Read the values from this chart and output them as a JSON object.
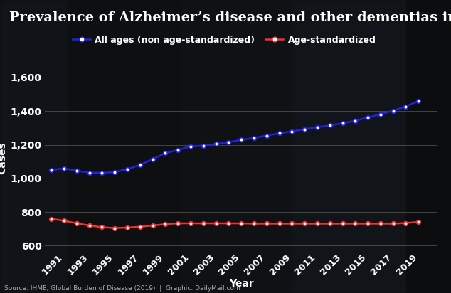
{
  "title": "Prevalence of Alzheimer’s disease and other dementias in US",
  "xlabel": "Year",
  "ylabel": "Cases",
  "source_text": "Source: IHME, Global Burden of Disease (2019)  |  Graphic: DailyMail.com",
  "years": [
    1990,
    1991,
    1992,
    1993,
    1994,
    1995,
    1996,
    1997,
    1998,
    1999,
    2000,
    2001,
    2002,
    2003,
    2004,
    2005,
    2006,
    2007,
    2008,
    2009,
    2010,
    2011,
    2012,
    2013,
    2014,
    2015,
    2016,
    2017,
    2018,
    2019
  ],
  "all_ages": [
    1050,
    1060,
    1045,
    1035,
    1033,
    1038,
    1055,
    1080,
    1115,
    1150,
    1170,
    1190,
    1195,
    1205,
    1215,
    1230,
    1240,
    1255,
    1268,
    1280,
    1293,
    1305,
    1315,
    1328,
    1343,
    1362,
    1382,
    1403,
    1428,
    1460
  ],
  "age_std": [
    760,
    748,
    733,
    720,
    710,
    705,
    708,
    713,
    720,
    728,
    733,
    733,
    733,
    733,
    733,
    733,
    731,
    731,
    731,
    731,
    731,
    731,
    731,
    731,
    731,
    731,
    731,
    731,
    735,
    741
  ],
  "all_ages_color": "#2222dd",
  "age_std_color": "#ee3333",
  "bg_dark": "#1a1a1a",
  "bg_alpha": 0.82,
  "text_color": "#ffffff",
  "grid_color": "#666666",
  "ylim": [
    580,
    1660
  ],
  "yticks": [
    600,
    800,
    1000,
    1200,
    1400,
    1600
  ],
  "xtick_years": [
    1991,
    1993,
    1995,
    1997,
    1999,
    2001,
    2003,
    2005,
    2007,
    2009,
    2011,
    2013,
    2015,
    2017,
    2019
  ],
  "title_fontsize": 14,
  "label_fontsize": 10,
  "tick_fontsize": 9,
  "legend_fontsize": 9,
  "source_fontsize": 6.5
}
